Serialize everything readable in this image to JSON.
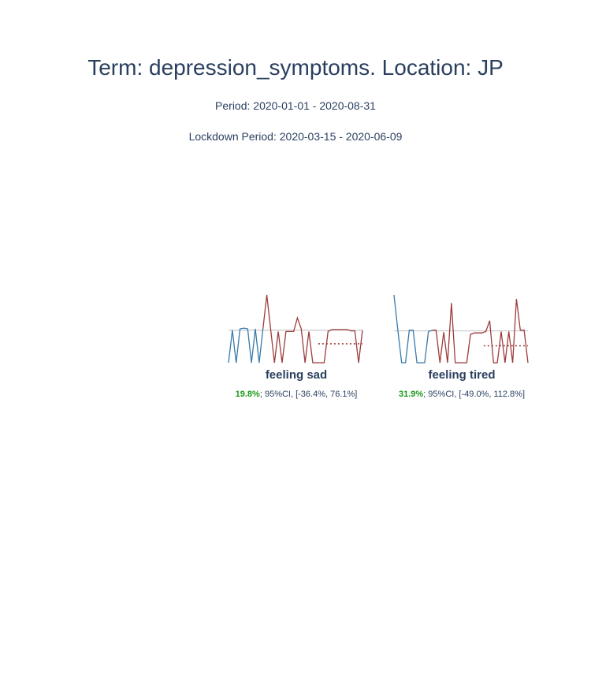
{
  "header": {
    "title": "Term: depression_symptoms. Location: JP",
    "period": "Period: 2020-01-01 - 2020-08-31",
    "lockdown": "Lockdown Period: 2020-03-15 - 2020-06-09"
  },
  "colors": {
    "pre": "#3a7aab",
    "post": "#9e3c3c",
    "baseline": "#c8c8c8",
    "pct": "#1a9a1a"
  },
  "chart_data": [
    {
      "type": "line",
      "name": "feeling sad",
      "pct": "19.8%",
      "ci": "; 95%CI, [-36.4%, 76.1%]",
      "ylim": [
        0,
        100
      ],
      "pre_values": [
        0,
        48,
        0,
        50,
        51,
        50,
        0,
        50,
        0,
        50
      ],
      "post_values": [
        100,
        50,
        0,
        46,
        0,
        46,
        46,
        46,
        66,
        50,
        0,
        46,
        0,
        0,
        0,
        0,
        46,
        49,
        49,
        49,
        49,
        49,
        47,
        47,
        0,
        48
      ],
      "baseline": 48,
      "post_mean": 28
    },
    {
      "type": "line",
      "name": "feeling tired",
      "pct": "31.9%",
      "ci": "; 95%CI, [-49.0%, 112.8%]",
      "ylim": [
        0,
        100
      ],
      "pre_values": [
        100,
        48,
        0,
        0,
        48,
        48,
        0,
        0,
        0,
        46,
        48
      ],
      "post_values": [
        48,
        0,
        45,
        0,
        88,
        0,
        0,
        0,
        0,
        42,
        44,
        44,
        44,
        46,
        62,
        0,
        0,
        46,
        0,
        46,
        0,
        94,
        48,
        48,
        0
      ],
      "baseline": 47,
      "post_mean": 25
    }
  ]
}
